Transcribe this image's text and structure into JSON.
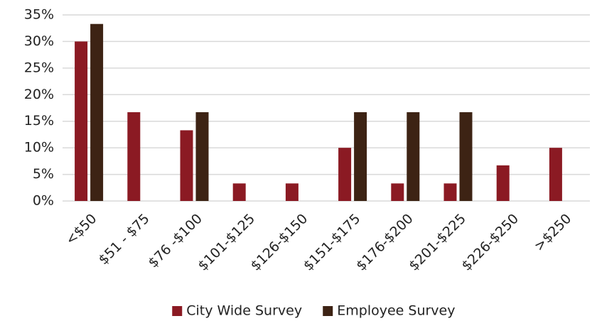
{
  "chart_data": {
    "type": "bar",
    "categories": [
      "<$50",
      "$51 - $75",
      "$76 -$100",
      "$101-$125",
      "$126-$150",
      "$151-$175",
      "$176-$200",
      "$201-$225",
      "$226-$250",
      ">$250"
    ],
    "series": [
      {
        "name": "City Wide Survey",
        "color": "#8b1a23",
        "values": [
          30,
          16.7,
          13.3,
          3.3,
          3.3,
          10,
          3.3,
          3.3,
          6.7,
          10
        ]
      },
      {
        "name": "Employee Survey",
        "color": "#3d2314",
        "values": [
          33.3,
          0,
          16.7,
          0,
          0,
          16.7,
          16.7,
          16.7,
          0,
          0
        ]
      }
    ],
    "ylim": [
      0,
      35
    ],
    "yticks": [
      {
        "value": 0,
        "label": "0%"
      },
      {
        "value": 5,
        "label": "5%"
      },
      {
        "value": 10,
        "label": "10%"
      },
      {
        "value": 15,
        "label": "15%"
      },
      {
        "value": 20,
        "label": "20%"
      },
      {
        "value": 25,
        "label": "25%"
      },
      {
        "value": 30,
        "label": "30%"
      },
      {
        "value": 35,
        "label": "35%"
      }
    ],
    "grid": true,
    "legend": "bottom"
  }
}
